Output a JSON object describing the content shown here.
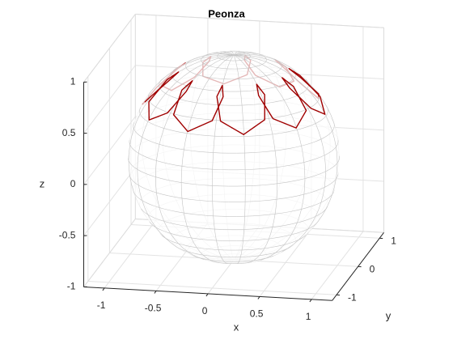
{
  "chart_data": {
    "type": "line3d",
    "title": "Peonza",
    "xlabel": "x",
    "ylabel": "y",
    "zlabel": "z",
    "xlim": [
      -1.2,
      1.2
    ],
    "ylim": [
      -1.2,
      1.2
    ],
    "zlim": [
      -1,
      1
    ],
    "xticks": [
      -1,
      -0.5,
      0,
      0.5,
      1
    ],
    "yticks": [
      -1,
      0,
      1
    ],
    "zticks": [
      -1,
      -0.5,
      0,
      0.5,
      1
    ],
    "grid": true,
    "series": [
      {
        "color": "#a00000",
        "x": [
          0.88,
          0.79,
          0.59,
          0.5,
          0.61,
          0.76,
          0.71,
          0.51,
          0.35,
          0.31,
          0.4,
          0.44,
          0.27,
          0.04,
          -0.03,
          0,
          0.03,
          -0.04,
          -0.27,
          -0.44,
          -0.4,
          -0.31,
          -0.35,
          -0.51,
          -0.71,
          -0.76,
          -0.61,
          -0.5,
          -0.59,
          -0.79,
          -0.88,
          -0.79,
          -0.59,
          -0.5,
          -0.61,
          -0.76,
          -0.71,
          -0.51,
          -0.35,
          -0.31,
          -0.4,
          -0.44,
          -0.27,
          -0.04,
          0.03,
          0,
          -0.03,
          0.04,
          0.27,
          0.44,
          0.4,
          0.31,
          0.35,
          0.51,
          0.71,
          0.76,
          0.61,
          0.5,
          0.59,
          0.79,
          0.88
        ],
        "y": [
          0,
          0.21,
          0.23,
          0.16,
          0.16,
          0.29,
          0.52,
          0.63,
          0.53,
          0.43,
          0.49,
          0.68,
          0.84,
          0.81,
          0.64,
          0.53,
          0.64,
          0.81,
          0.84,
          0.68,
          0.49,
          0.43,
          0.53,
          0.63,
          0.52,
          0.29,
          0.16,
          0.16,
          0.23,
          0.21,
          0,
          -0.21,
          -0.23,
          -0.16,
          -0.16,
          -0.29,
          -0.52,
          -0.63,
          -0.53,
          -0.43,
          -0.49,
          -0.68,
          -0.84,
          -0.81,
          -0.64,
          -0.53,
          -0.64,
          -0.81,
          -0.84,
          -0.68,
          -0.49,
          -0.43,
          -0.53,
          -0.63,
          -0.52,
          -0.29,
          -0.16,
          -0.16,
          -0.23,
          -0.21,
          0
        ],
        "z": [
          0.47,
          0.58,
          0.77,
          0.85,
          0.77,
          0.58,
          0.47,
          0.58,
          0.77,
          0.85,
          0.77,
          0.58,
          0.47,
          0.58,
          0.77,
          0.85,
          0.77,
          0.58,
          0.47,
          0.58,
          0.77,
          0.85,
          0.77,
          0.58,
          0.47,
          0.58,
          0.77,
          0.85,
          0.77,
          0.58,
          0.47,
          0.58,
          0.77,
          0.85,
          0.77,
          0.58,
          0.47,
          0.58,
          0.77,
          0.85,
          0.77,
          0.58,
          0.47,
          0.58,
          0.77,
          0.85,
          0.77,
          0.58,
          0.47,
          0.58,
          0.77,
          0.85,
          0.77,
          0.58,
          0.47,
          0.58,
          0.77,
          0.85,
          0.77,
          0.58,
          0.47
        ]
      }
    ]
  }
}
